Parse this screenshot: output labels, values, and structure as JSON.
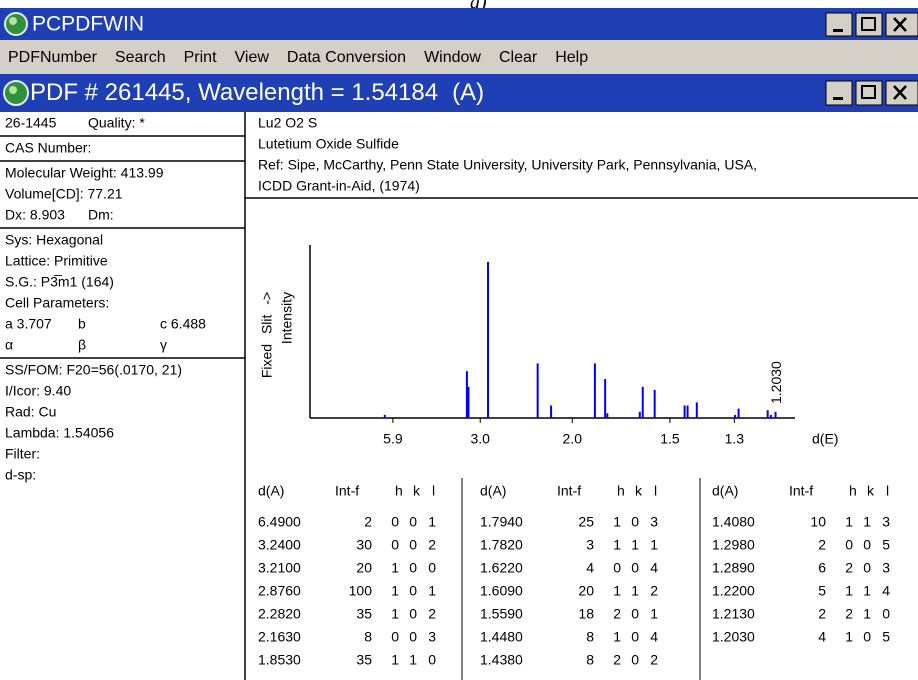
{
  "caption": "a)",
  "app_title": "PCPDFWIN",
  "menu": [
    "PDFNumber",
    "Search",
    "Print",
    "View",
    "Data Conversion",
    "Window",
    "Clear",
    "Help"
  ],
  "window": {
    "title_prefix": "PDF # 261445, Wavelength = ",
    "wavelength": "1.54184",
    "title_suffix": "(A)"
  },
  "left_panel": [
    [
      [
        "26-1445",
        "Quality: *"
      ]
    ],
    [
      [
        "CAS Number:"
      ]
    ],
    [
      [
        "Molecular Weight:  413.99"
      ],
      [
        "Volume[CD]:   77.21"
      ],
      [
        "Dx:  8.903",
        "Dm:"
      ]
    ],
    [
      [
        "Sys: Hexagonal"
      ],
      [
        "Lattice: Primitive"
      ],
      [
        "S.G.: P3̅m1 (164)"
      ],
      [
        "Cell Parameters:"
      ],
      [
        "a  3.707",
        "b",
        "c  6.488"
      ],
      [
        "α",
        "β",
        "γ"
      ]
    ],
    [
      [
        "SS/FOM: F20=56(.0170, 21)"
      ],
      [
        "I/Icor:  9.40"
      ],
      [
        "Rad: Cu"
      ],
      [
        "Lambda: 1.54056"
      ],
      [
        "Filter:"
      ],
      [
        "d-sp:"
      ]
    ]
  ],
  "header": [
    "Lu2 O2 S",
    "Lutetium Oxide Sulfide",
    "Ref: Sipe, McCarthy, Penn State University, University Park, Pennsylvania, USA,",
    "ICDD Grant-in-Aid, (1974)"
  ],
  "plot": {
    "type": "stick",
    "y_label": [
      "Fixed  Slit  ->",
      "Intensity"
    ],
    "x_label": "d(E)",
    "xticks": [
      "5.9",
      "3.0",
      "2.0",
      "1.5",
      "1.3"
    ],
    "xlim": [
      1,
      83
    ],
    "ylim": [
      0,
      100
    ],
    "annotation": "1.2030",
    "color": "#0000ff"
  },
  "table": {
    "columns": [
      "d(A)",
      "Int-f",
      "h",
      "k",
      "l"
    ],
    "groups": [
      [
        [
          "6.4900",
          2,
          0,
          0,
          1
        ],
        [
          "3.2400",
          30,
          0,
          0,
          2
        ],
        [
          "3.2100",
          20,
          1,
          0,
          0
        ],
        [
          "2.8760",
          100,
          1,
          0,
          1
        ],
        [
          "2.2820",
          35,
          1,
          0,
          2
        ],
        [
          "2.1630",
          8,
          0,
          0,
          3
        ],
        [
          "1.8530",
          35,
          1,
          1,
          0
        ]
      ],
      [
        [
          "1.7940",
          25,
          1,
          0,
          3
        ],
        [
          "1.7820",
          3,
          1,
          1,
          1
        ],
        [
          "1.6220",
          4,
          0,
          0,
          4
        ],
        [
          "1.6090",
          20,
          1,
          1,
          2
        ],
        [
          "1.5590",
          18,
          2,
          0,
          1
        ],
        [
          "1.4480",
          8,
          1,
          0,
          4
        ],
        [
          "1.4380",
          8,
          2,
          0,
          2
        ]
      ],
      [
        [
          "1.4080",
          10,
          1,
          1,
          3
        ],
        [
          "1.2980",
          2,
          0,
          0,
          5
        ],
        [
          "1.2890",
          6,
          2,
          0,
          3
        ],
        [
          "1.2200",
          5,
          1,
          1,
          4
        ],
        [
          "1.2130",
          2,
          2,
          1,
          0
        ],
        [
          "1.2030",
          4,
          1,
          0,
          5
        ]
      ]
    ]
  }
}
